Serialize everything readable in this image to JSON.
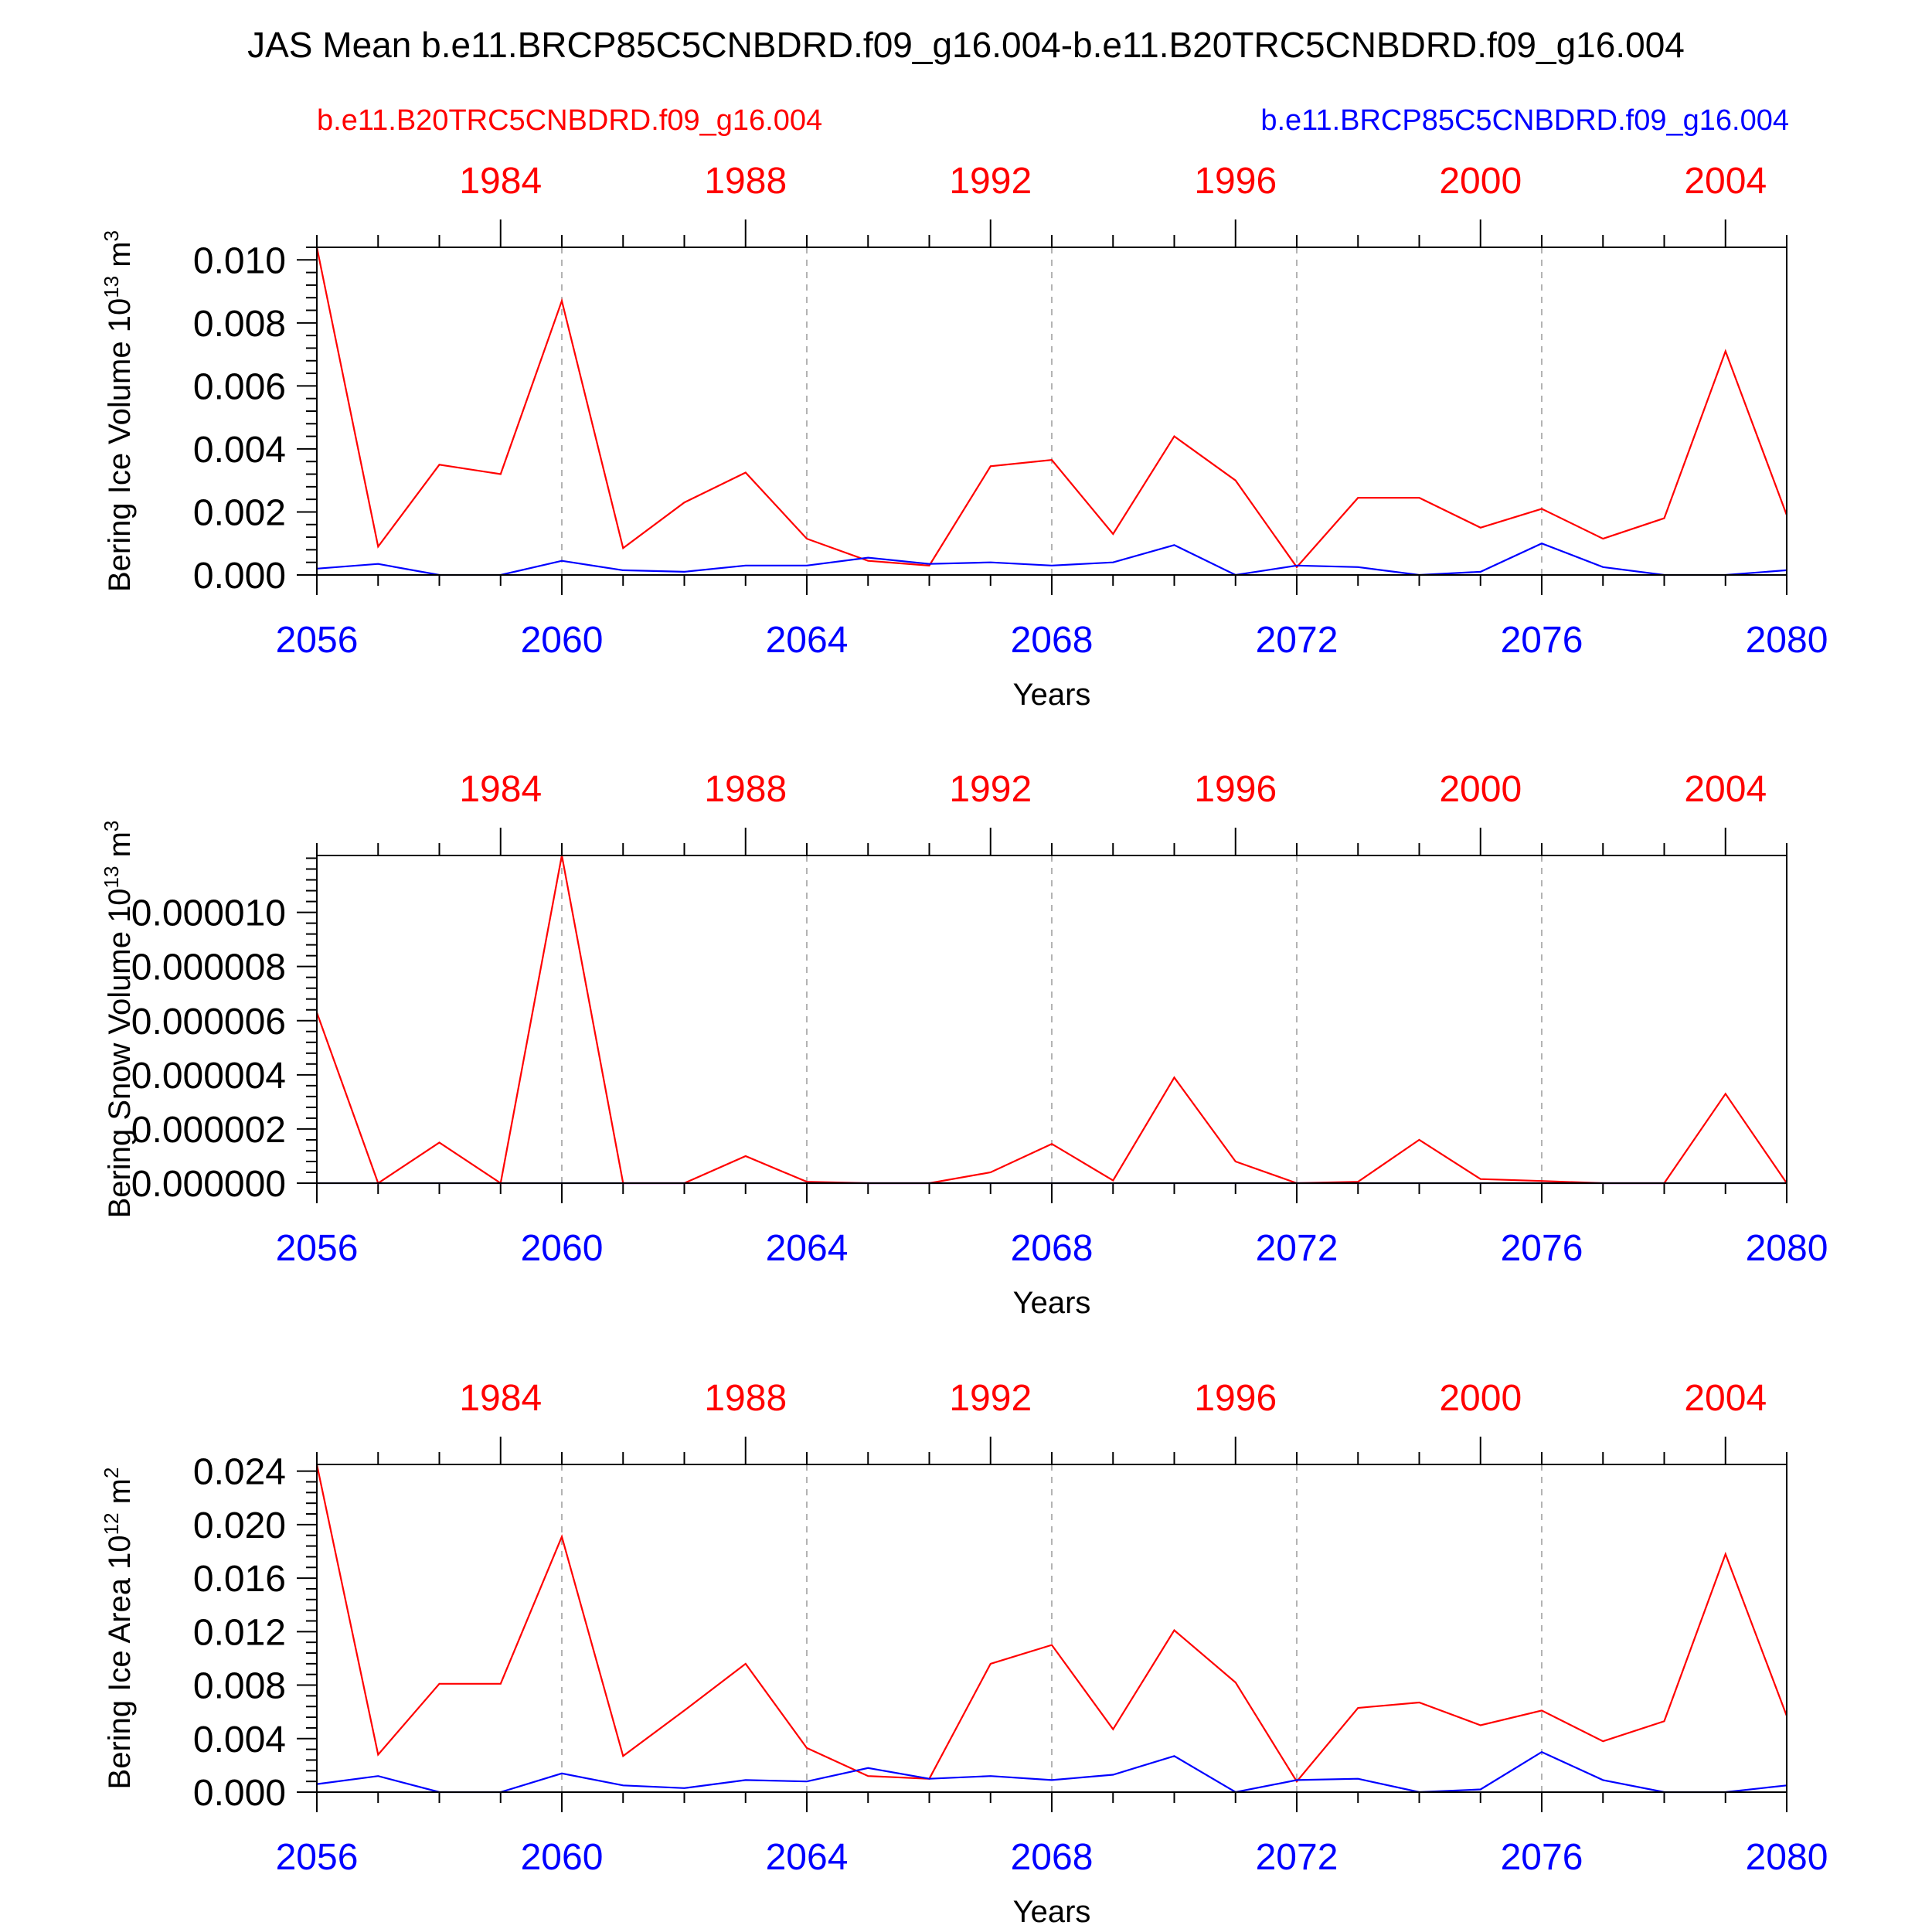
{
  "title": "JAS Mean b.e11.BRCP85C5CNBDRD.f09_g16.004-b.e11.B20TRC5CNBDRD.f09_g16.004",
  "legend": {
    "red_label": "b.e11.B20TRC5CNBDRD.f09_g16.004",
    "blue_label": "b.e11.BRCP85C5CNBDRD.f09_g16.004"
  },
  "colors": {
    "red": "#ff0000",
    "blue": "#0000ff",
    "axis": "#000000",
    "grid": "#9a9a9a"
  },
  "axes_common": {
    "xlabel": "Years",
    "bottom_ticks": [
      "2056",
      "2060",
      "2064",
      "2068",
      "2072",
      "2076",
      "2080"
    ],
    "top_ticks": [
      "1984",
      "1988",
      "1992",
      "1996",
      "2000",
      "2004"
    ],
    "bottom_xlim": [
      2056,
      2080
    ],
    "top_xlim": [
      1981,
      2005
    ]
  },
  "chart_data": [
    {
      "type": "line",
      "ylabel_main": "Bering Ice Volume 10",
      "ylabel_exp": "13",
      "ylabel_unit": " m",
      "ylabel_unit_exp": "3",
      "ylim": [
        0.0,
        0.0104
      ],
      "yticks": [
        "0.000",
        "0.002",
        "0.004",
        "0.006",
        "0.008",
        "0.010"
      ],
      "ytick_values": [
        0.0,
        0.002,
        0.004,
        0.006,
        0.008,
        0.01
      ],
      "x": [
        2056,
        2057,
        2058,
        2059,
        2060,
        2061,
        2062,
        2063,
        2064,
        2065,
        2066,
        2067,
        2068,
        2069,
        2070,
        2071,
        2072,
        2073,
        2074,
        2075,
        2076,
        2077,
        2078,
        2079,
        2080
      ],
      "series": [
        {
          "name": "b.e11.B20TRC5CNBDRD.f09_g16.004",
          "color": "#ff0000",
          "values": [
            0.0104,
            0.0009,
            0.0035,
            0.0032,
            0.0087,
            0.00085,
            0.0023,
            0.00325,
            0.00115,
            0.00045,
            0.0003,
            0.00345,
            0.00365,
            0.0013,
            0.0044,
            0.003,
            0.00025,
            0.00245,
            0.00245,
            0.0015,
            0.0021,
            0.00115,
            0.0018,
            0.0071,
            0.0019
          ]
        },
        {
          "name": "b.e11.BRCP85C5CNBDRD.f09_g16.004",
          "color": "#0000ff",
          "values": [
            0.0002,
            0.00035,
            0.0,
            0.0,
            0.00045,
            0.00015,
            0.0001,
            0.0003,
            0.0003,
            0.00055,
            0.00035,
            0.0004,
            0.0003,
            0.0004,
            0.00095,
            0.0,
            0.0003,
            0.00025,
            0.0,
            0.0001,
            0.001,
            0.00025,
            0.0,
            0.0,
            0.00015
          ]
        }
      ]
    },
    {
      "type": "line",
      "ylabel_main": "Bering Snow Volume 10",
      "ylabel_exp": "13",
      "ylabel_unit": " m",
      "ylabel_unit_exp": "3",
      "ylim": [
        0.0,
        1.21e-05
      ],
      "yticks": [
        "0.000000",
        "0.000002",
        "0.000004",
        "0.000006",
        "0.000008",
        "0.000010"
      ],
      "ytick_values": [
        0.0,
        2e-06,
        4e-06,
        6e-06,
        8e-06,
        1e-05
      ],
      "x": [
        2056,
        2057,
        2058,
        2059,
        2060,
        2061,
        2062,
        2063,
        2064,
        2065,
        2066,
        2067,
        2068,
        2069,
        2070,
        2071,
        2072,
        2073,
        2074,
        2075,
        2076,
        2077,
        2078,
        2079,
        2080
      ],
      "series": [
        {
          "name": "b.e11.B20TRC5CNBDRD.f09_g16.004",
          "color": "#ff0000",
          "values": [
            6.3e-06,
            0.0,
            1.5e-06,
            0.0,
            1.21e-05,
            0.0,
            0.0,
            1e-06,
            5e-08,
            0.0,
            0.0,
            4e-07,
            1.45e-06,
            1e-07,
            3.9e-06,
            8e-07,
            0.0,
            5e-08,
            1.6e-06,
            1.5e-07,
            8e-08,
            0.0,
            0.0,
            3.3e-06,
            0.0
          ]
        },
        {
          "name": "b.e11.BRCP85C5CNBDRD.f09_g16.004",
          "color": "#0000ff",
          "values": [
            0.0,
            0.0,
            0.0,
            0.0,
            0.0,
            0.0,
            0.0,
            0.0,
            0.0,
            0.0,
            0.0,
            0.0,
            0.0,
            0.0,
            0.0,
            0.0,
            0.0,
            0.0,
            0.0,
            0.0,
            0.0,
            0.0,
            0.0,
            0.0,
            0.0
          ]
        }
      ]
    },
    {
      "type": "line",
      "ylabel_main": "Bering Ice Area 10",
      "ylabel_exp": "12",
      "ylabel_unit": " m",
      "ylabel_unit_exp": "2",
      "ylim": [
        0.0,
        0.0245
      ],
      "yticks": [
        "0.000",
        "0.004",
        "0.008",
        "0.012",
        "0.016",
        "0.020",
        "0.024"
      ],
      "ytick_values": [
        0.0,
        0.004,
        0.008,
        0.012,
        0.016,
        0.02,
        0.024
      ],
      "x": [
        2056,
        2057,
        2058,
        2059,
        2060,
        2061,
        2062,
        2063,
        2064,
        2065,
        2066,
        2067,
        2068,
        2069,
        2070,
        2071,
        2072,
        2073,
        2074,
        2075,
        2076,
        2077,
        2078,
        2079,
        2080
      ],
      "series": [
        {
          "name": "b.e11.B20TRC5CNBDRD.f09_g16.004",
          "color": "#ff0000",
          "values": [
            0.0245,
            0.0028,
            0.0081,
            0.0081,
            0.0191,
            0.0027,
            0.0061,
            0.0096,
            0.0033,
            0.0012,
            0.001,
            0.0096,
            0.011,
            0.0047,
            0.0121,
            0.0082,
            0.0008,
            0.0063,
            0.0067,
            0.005,
            0.0061,
            0.0038,
            0.0053,
            0.0178,
            0.0057
          ]
        },
        {
          "name": "b.e11.BRCP85C5CNBDRD.f09_g16.004",
          "color": "#0000ff",
          "values": [
            0.0006,
            0.0012,
            0.0,
            0.0,
            0.0014,
            0.0005,
            0.0003,
            0.0009,
            0.0008,
            0.0018,
            0.001,
            0.0012,
            0.0009,
            0.0013,
            0.0027,
            0.0,
            0.0009,
            0.001,
            0.0,
            0.0002,
            0.003,
            0.0009,
            0.0,
            0.0,
            0.0005
          ]
        }
      ]
    }
  ]
}
